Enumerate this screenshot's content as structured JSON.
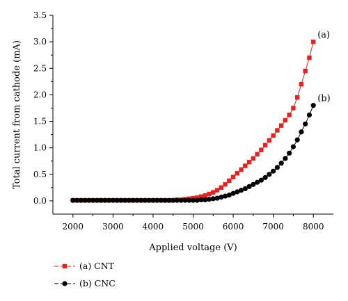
{
  "chart_data": {
    "type": "scatter",
    "xlabel": "Applied voltage (V)",
    "ylabel": "Total current from cathode (mA)",
    "xlim": [
      1500,
      8500
    ],
    "ylim": [
      -0.25,
      3.5
    ],
    "xticks": [
      2000,
      3000,
      4000,
      5000,
      6000,
      7000,
      8000
    ],
    "yticks": [
      0.0,
      0.5,
      1.0,
      1.5,
      2.0,
      2.5,
      3.0,
      3.5
    ],
    "ytick_labels": [
      "0.0",
      "0.5",
      "1.0",
      "1.5",
      "2.0",
      "2.5",
      "3.0",
      "3.5"
    ],
    "legend_position": "bottom-left",
    "series": [
      {
        "name": "(a) CNT",
        "color": "#e8201e",
        "marker": "square",
        "annotation": "(a)",
        "x": [
          2000,
          2100,
          2200,
          2300,
          2400,
          2500,
          2600,
          2700,
          2800,
          2900,
          3000,
          3100,
          3200,
          3300,
          3400,
          3500,
          3600,
          3700,
          3800,
          3900,
          4000,
          4100,
          4200,
          4300,
          4400,
          4500,
          4600,
          4700,
          4800,
          4900,
          5000,
          5100,
          5200,
          5300,
          5400,
          5500,
          5600,
          5700,
          5800,
          5900,
          6000,
          6100,
          6200,
          6300,
          6400,
          6500,
          6600,
          6700,
          6800,
          6900,
          7000,
          7100,
          7200,
          7300,
          7400,
          7500,
          7600,
          7700,
          7800,
          7900,
          8000
        ],
        "y": [
          0.01,
          0.01,
          0.01,
          0.01,
          0.01,
          0.01,
          0.01,
          0.01,
          0.01,
          0.01,
          0.01,
          0.01,
          0.01,
          0.01,
          0.01,
          0.01,
          0.01,
          0.01,
          0.01,
          0.01,
          0.01,
          0.01,
          0.01,
          0.01,
          0.01,
          0.01,
          0.02,
          0.02,
          0.03,
          0.04,
          0.05,
          0.06,
          0.08,
          0.1,
          0.13,
          0.16,
          0.2,
          0.25,
          0.31,
          0.38,
          0.45,
          0.52,
          0.59,
          0.66,
          0.73,
          0.8,
          0.88,
          0.96,
          1.05,
          1.14,
          1.23,
          1.33,
          1.42,
          1.52,
          1.62,
          1.75,
          1.95,
          2.2,
          2.45,
          2.7,
          3.0
        ]
      },
      {
        "name": "(b) CNC",
        "color": "#000000",
        "marker": "circle",
        "annotation": "(b)",
        "x": [
          2000,
          2100,
          2200,
          2300,
          2400,
          2500,
          2600,
          2700,
          2800,
          2900,
          3000,
          3100,
          3200,
          3300,
          3400,
          3500,
          3600,
          3700,
          3800,
          3900,
          4000,
          4100,
          4200,
          4300,
          4400,
          4500,
          4600,
          4700,
          4800,
          4900,
          5000,
          5100,
          5200,
          5300,
          5400,
          5500,
          5600,
          5700,
          5800,
          5900,
          6000,
          6100,
          6200,
          6300,
          6400,
          6500,
          6600,
          6700,
          6800,
          6900,
          7000,
          7100,
          7200,
          7300,
          7400,
          7500,
          7600,
          7700,
          7800,
          7900,
          8000
        ],
        "y": [
          0.01,
          0.01,
          0.01,
          0.01,
          0.01,
          0.01,
          0.01,
          0.01,
          0.01,
          0.01,
          0.01,
          0.01,
          0.01,
          0.01,
          0.01,
          0.01,
          0.01,
          0.01,
          0.01,
          0.01,
          0.01,
          0.01,
          0.01,
          0.01,
          0.01,
          0.01,
          0.01,
          0.01,
          0.01,
          0.01,
          0.01,
          0.01,
          0.02,
          0.02,
          0.03,
          0.04,
          0.05,
          0.07,
          0.09,
          0.11,
          0.14,
          0.17,
          0.2,
          0.23,
          0.27,
          0.31,
          0.35,
          0.39,
          0.44,
          0.5,
          0.56,
          0.63,
          0.71,
          0.8,
          0.9,
          1.02,
          1.15,
          1.3,
          1.45,
          1.62,
          1.8
        ]
      }
    ]
  }
}
